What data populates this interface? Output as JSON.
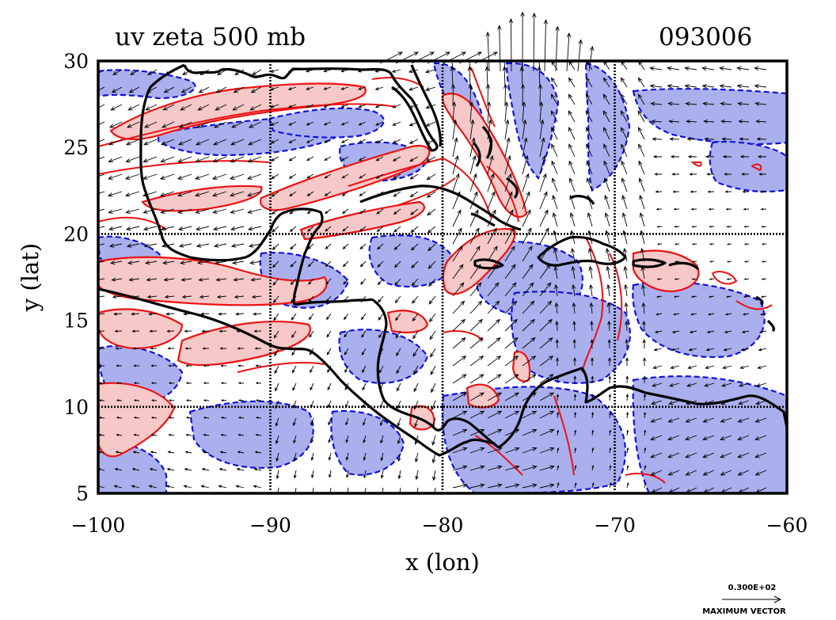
{
  "plot": {
    "title_left": "uv zeta 500 mb",
    "title_right": "093006",
    "xlabel": "x (lon)",
    "ylabel": "y (lat)"
  },
  "axes": {
    "xlim": [
      -100,
      -60
    ],
    "ylim": [
      5,
      30
    ],
    "x_ticks": [
      {
        "value": -100,
        "label": "−100"
      },
      {
        "value": -90,
        "label": "−90"
      },
      {
        "value": -80,
        "label": "−80"
      },
      {
        "value": -70,
        "label": "−70"
      },
      {
        "value": -60,
        "label": "−60"
      }
    ],
    "y_ticks": [
      {
        "value": 5,
        "label": "5"
      },
      {
        "value": 10,
        "label": "10"
      },
      {
        "value": 15,
        "label": "15"
      },
      {
        "value": 20,
        "label": "20"
      },
      {
        "value": 25,
        "label": "25"
      },
      {
        "value": 30,
        "label": "30"
      }
    ],
    "grid": true
  },
  "legend": {
    "vector_value": "0.300E+02",
    "vector_label": "MAXIMUM VECTOR"
  },
  "colors": {
    "positive_fill": "#f6c8c8",
    "positive_line": "#ee1111",
    "negative_fill": "#aab0ee",
    "negative_line": "#1111dd",
    "coastline": "#000000",
    "vector": "#000000"
  }
}
